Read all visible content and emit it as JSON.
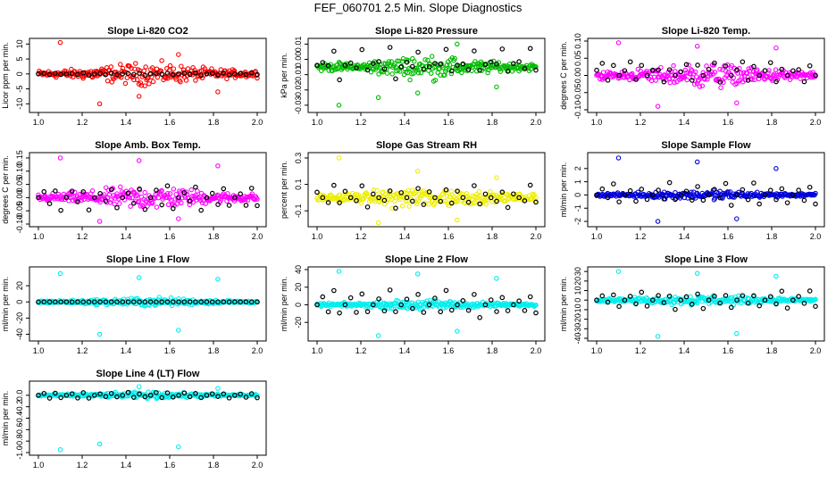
{
  "title": "FEF_060701  2.5 Min. Slope Diagnostics",
  "colors": {
    "ref": "#000000"
  },
  "chart_data": [
    {
      "type": "scatter",
      "title": "Slope Li-820 CO2",
      "ylabel": "Licor ppm per min.",
      "color": "#ff0000",
      "xlim": [
        1.0,
        2.0
      ],
      "ylim": [
        -12,
        11
      ],
      "xticks": [
        "1.0",
        "1.2",
        "1.4",
        "1.6",
        "1.8",
        "2.0"
      ],
      "yticks": [
        -10,
        -5,
        0,
        5,
        10
      ],
      "ytick_labels": [
        "-10",
        "-5",
        "0",
        "5",
        "10"
      ],
      "spread": 4,
      "outlier_values": [
        10.5,
        -10,
        -7.5,
        6.5,
        -6
      ],
      "ref_values": [
        0,
        0.3,
        -0.3,
        0.5,
        -0.5
      ]
    },
    {
      "type": "scatter",
      "title": "Slope Li-820 Pressure",
      "ylabel": "kPa per min.",
      "color": "#00bb00",
      "xlim": [
        1.0,
        2.0
      ],
      "ylim": [
        -0.033,
        0.012
      ],
      "xticks": [
        "1.0",
        "1.2",
        "1.4",
        "1.6",
        "1.8",
        "2.0"
      ],
      "yticks": [
        -0.03,
        -0.02,
        -0.01,
        0,
        0.01
      ],
      "ytick_labels": [
        "-0.03",
        "-0.02",
        "-0.01",
        "0.00",
        "0.01"
      ],
      "spread": 0.008,
      "outlier_values": [
        -0.03,
        -0.025,
        -0.022,
        0.01,
        -0.018
      ],
      "ref_values": [
        -0.005,
        -0.003,
        -0.007,
        0.008,
        -0.015
      ]
    },
    {
      "type": "scatter",
      "title": "Slope Li-820 Temp.",
      "ylabel": "degrees C per min.",
      "color": "#ff00ff",
      "xlim": [
        1.0,
        2.0
      ],
      "ylim": [
        -0.1,
        0.1
      ],
      "xticks": [
        "1.0",
        "1.2",
        "1.4",
        "1.6",
        "1.8",
        "2.0"
      ],
      "yticks": [
        -0.1,
        -0.05,
        0,
        0.05,
        0.1
      ],
      "ytick_labels": [
        "-0.10",
        "-0.05",
        "0.00",
        "0.05",
        "0.10"
      ],
      "spread": 0.04,
      "outlier_values": [
        0.095,
        -0.09,
        0.085,
        -0.08,
        0.08
      ],
      "ref_values": [
        0.02,
        0.04,
        -0.02,
        0.03,
        0.0
      ]
    },
    {
      "type": "scatter",
      "title": "Slope Amb. Box Temp.",
      "ylabel": "degrees C per min.",
      "color": "#ff00ff",
      "xlim": [
        1.0,
        2.0
      ],
      "ylim": [
        -0.1,
        0.16
      ],
      "xticks": [
        "1.0",
        "1.2",
        "1.4",
        "1.6",
        "1.8",
        "2.0"
      ],
      "yticks": [
        -0.1,
        -0.05,
        0,
        0.05,
        0.1,
        0.15
      ],
      "ytick_labels": [
        "-0.10",
        "-0.05",
        "0.00",
        "0.05",
        "0.10",
        "0.15"
      ],
      "spread": 0.05,
      "outlier_values": [
        0.15,
        -0.09,
        0.14,
        -0.08,
        0.12
      ],
      "ref_values": [
        0.0,
        0.03,
        -0.03,
        0.05,
        -0.05
      ]
    },
    {
      "type": "scatter",
      "title": "Slope Gas Stream RH",
      "ylabel": "percent per min.",
      "color": "#eeee00",
      "xlim": [
        1.0,
        2.0
      ],
      "ylim": [
        -0.2,
        0.32
      ],
      "xticks": [
        "1.0",
        "1.2",
        "1.4",
        "1.6",
        "1.8",
        "2.0"
      ],
      "yticks": [
        -0.1,
        0.1,
        0.3
      ],
      "ytick_labels": [
        "-0.1",
        "0.1",
        "0.3"
      ],
      "spread": 0.09,
      "outlier_values": [
        0.3,
        -0.19,
        0.2,
        -0.17,
        0.15
      ],
      "ref_values": [
        0.05,
        0.0,
        -0.05,
        0.1,
        -0.08
      ]
    },
    {
      "type": "scatter",
      "title": "Slope Sample Flow",
      "ylabel": "ml/min per min.",
      "color": "#0000dd",
      "xlim": [
        1.0,
        2.0
      ],
      "ylim": [
        -2.2,
        3.0
      ],
      "xticks": [
        "1.0",
        "1.2",
        "1.4",
        "1.6",
        "1.8",
        "2.0"
      ],
      "yticks": [
        -2,
        -1,
        0,
        1,
        2
      ],
      "ytick_labels": [
        "-2",
        "-1",
        "0",
        "1",
        "2"
      ],
      "spread": 0.4,
      "outlier_values": [
        2.8,
        -2.0,
        2.5,
        -1.8,
        2.0
      ],
      "ref_values": [
        0.0,
        0.5,
        -0.5,
        1.0,
        -0.8
      ]
    },
    {
      "type": "scatter",
      "title": "Slope Line 1 Flow",
      "ylabel": "ml/min per min.",
      "color": "#00eeee",
      "xlim": [
        1.0,
        2.0
      ],
      "ylim": [
        -45,
        40
      ],
      "xticks": [
        "1.0",
        "1.2",
        "1.4",
        "1.6",
        "1.8",
        "2.0"
      ],
      "yticks": [
        -40,
        -20,
        0,
        20
      ],
      "ytick_labels": [
        "-40",
        "-20",
        "0",
        "20"
      ],
      "spread": 6,
      "outlier_values": [
        35,
        -40,
        30,
        -35,
        28
      ],
      "ref_values": [
        0,
        0,
        0,
        0,
        0
      ]
    },
    {
      "type": "scatter",
      "title": "Slope Line 2 Flow",
      "ylabel": "ml/min per min.",
      "color": "#00eeee",
      "xlim": [
        1.0,
        2.0
      ],
      "ylim": [
        -38,
        40
      ],
      "xticks": [
        "1.0",
        "1.2",
        "1.4",
        "1.6",
        "1.8",
        "2.0"
      ],
      "yticks": [
        -20,
        0,
        20,
        40
      ],
      "ytick_labels": [
        "-20",
        "0",
        "20",
        "40"
      ],
      "spread": 6,
      "outlier_values": [
        38,
        -35,
        35,
        -30,
        30
      ],
      "ref_values": [
        0,
        10,
        -10,
        20,
        -15
      ]
    },
    {
      "type": "scatter",
      "title": "Slope Line 3 Flow",
      "ylabel": "ml/min per min.",
      "color": "#00eeee",
      "xlim": [
        1.0,
        2.0
      ],
      "ylim": [
        -40,
        32
      ],
      "xticks": [
        "1.0",
        "1.2",
        "1.4",
        "1.6",
        "1.8",
        "2.0"
      ],
      "yticks": [
        -40,
        -30,
        -20,
        -10,
        0,
        10,
        20,
        30
      ],
      "ytick_labels": [
        "-40",
        "-30",
        "-20",
        "-10",
        "0",
        "10",
        "20",
        "30"
      ],
      "spread": 6,
      "outlier_values": [
        30,
        -38,
        28,
        -35,
        25
      ],
      "ref_values": [
        0,
        5,
        -5,
        10,
        -10
      ]
    },
    {
      "type": "scatter",
      "title": "Slope Line 4 (LT) Flow",
      "ylabel": "ml/min per min.",
      "color": "#00eeee",
      "xlim": [
        1.0,
        2.0
      ],
      "ylim": [
        -1.0,
        0.2
      ],
      "xticks": [
        "1.0",
        "1.2",
        "1.4",
        "1.6",
        "1.8",
        "2.0"
      ],
      "yticks": [
        -1.0,
        -0.8,
        -0.6,
        -0.4,
        -0.2,
        0.0
      ],
      "ytick_labels": [
        "-1.0",
        "-0.8",
        "-0.6",
        "-0.4",
        "-0.2",
        "0.0"
      ],
      "spread": 0.06,
      "outlier_values": [
        -0.95,
        -0.85,
        0.15,
        -0.9,
        0.12
      ],
      "ref_values": [
        0,
        0.05,
        -0.05,
        0.05,
        -0.05
      ]
    }
  ]
}
